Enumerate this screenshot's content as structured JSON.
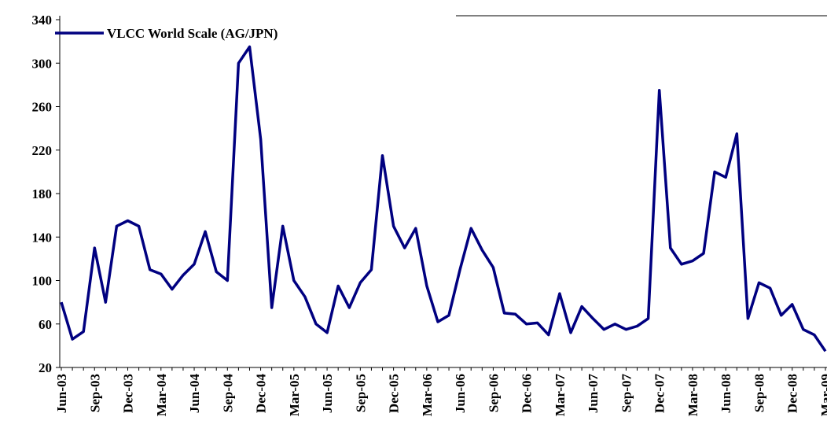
{
  "chart_data": {
    "type": "line",
    "categories": [
      "Jun-03",
      null,
      null,
      "Sep-03",
      null,
      null,
      "Dec-03",
      null,
      null,
      "Mar-04",
      null,
      null,
      "Jun-04",
      null,
      null,
      "Sep-04",
      null,
      null,
      "Dec-04",
      null,
      null,
      "Mar-05",
      null,
      null,
      "Jun-05",
      null,
      null,
      "Sep-05",
      null,
      null,
      "Dec-05",
      null,
      null,
      "Mar-06",
      null,
      null,
      "Jun-06",
      null,
      null,
      "Sep-06",
      null,
      null,
      "Dec-06",
      null,
      null,
      "Mar-07",
      null,
      null,
      "Jun-07",
      null,
      null,
      "Sep-07",
      null,
      null,
      "Dec-07",
      null,
      null,
      "Mar-08",
      null,
      null,
      "Jun-08",
      null,
      null,
      "Sep-08",
      null,
      null,
      "Dec-08",
      null,
      null,
      "Mar-09"
    ],
    "series": [
      {
        "name": "VLCC World Scale (AG/JPN)",
        "color": "#000080",
        "values": [
          80,
          46,
          53,
          130,
          80,
          150,
          155,
          150,
          110,
          106,
          92,
          105,
          115,
          145,
          108,
          100,
          300,
          315,
          230,
          75,
          150,
          100,
          85,
          60,
          52,
          95,
          75,
          98,
          110,
          215,
          150,
          130,
          148,
          95,
          62,
          68,
          110,
          148,
          128,
          112,
          70,
          69,
          60,
          61,
          50,
          88,
          52,
          76,
          65,
          55,
          60,
          55,
          58,
          65,
          275,
          130,
          115,
          118,
          125,
          200,
          195,
          235,
          65,
          98,
          93,
          68,
          78,
          55,
          50,
          35
        ]
      }
    ],
    "ylim": [
      20,
      340
    ],
    "yticks": [
      20,
      60,
      100,
      140,
      180,
      220,
      260,
      300,
      340
    ],
    "grid": false,
    "legend": "top-left"
  }
}
